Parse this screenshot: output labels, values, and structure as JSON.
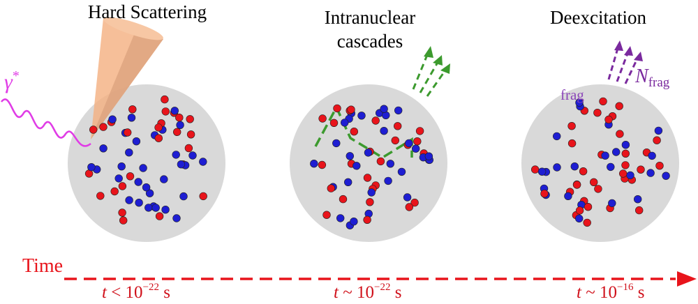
{
  "stages": [
    {
      "title": "Hard Scattering"
    },
    {
      "title_line1": "Intranuclear",
      "title_line2": "cascades"
    },
    {
      "title": "Deexcitation"
    }
  ],
  "labels": {
    "photon": "γ",
    "photon_sup": "*",
    "fragment_symbol": "N",
    "fragment_sub": "frag",
    "fragment_word": "frag"
  },
  "time_axis": {
    "title": "Time",
    "ticks": [
      {
        "prefix": "t",
        "relation": " < 10",
        "exponent": "−22",
        "unit": " s"
      },
      {
        "prefix": "t",
        "relation": " ~ 10",
        "exponent": "−22",
        "unit": " s"
      },
      {
        "prefix": "t",
        "relation": " ~ 10",
        "exponent": "−16",
        "unit": " s"
      }
    ]
  },
  "colors": {
    "proton": "#e8141b",
    "neutron": "#1e1ed2",
    "nucleus": "#d9d9d9",
    "photon": "#e03ce6",
    "cascade": "#3c9a2e",
    "fragments": "#7a2a9e",
    "cone": "#f4b183",
    "time_arrow": "#e8141b"
  }
}
